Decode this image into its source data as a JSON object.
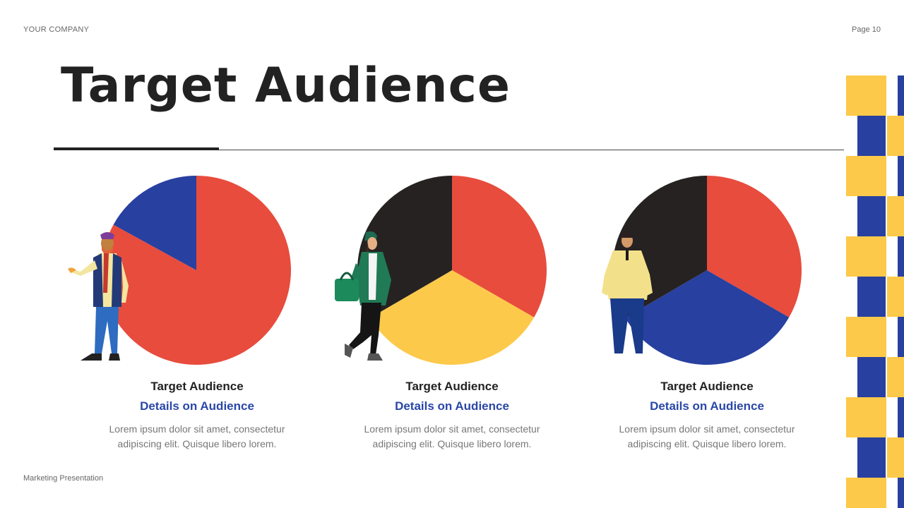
{
  "header": {
    "company": "YOUR COMPANY",
    "page": "Page 10"
  },
  "footer": {
    "text": "Marketing Presentation"
  },
  "title": "Target Audience",
  "colors": {
    "red": "#e84c3d",
    "blue": "#2840a0",
    "dark": "#262222",
    "yellow": "#fdc94a"
  },
  "chart_data": [
    {
      "type": "pie",
      "values": [
        83,
        17
      ],
      "colors": [
        "#e84c3d",
        "#2840a0"
      ]
    },
    {
      "type": "pie",
      "values": [
        33.3,
        33.3,
        33.4
      ],
      "colors": [
        "#e84c3d",
        "#fdc94a",
        "#262222"
      ]
    },
    {
      "type": "pie",
      "values": [
        33.3,
        33.3,
        33.4
      ],
      "colors": [
        "#e84c3d",
        "#2840a0",
        "#262222"
      ]
    }
  ],
  "cards": [
    {
      "title": "Target Audience",
      "subtitle": "Details on Audience",
      "line1": "Lorem ipsum dolor sit amet, consectetur",
      "line2": "adipiscing elit. Quisque libero lorem."
    },
    {
      "title": "Target Audience",
      "subtitle": "Details on Audience",
      "line1": "Lorem ipsum dolor sit amet, consectetur",
      "line2": "adipiscing elit. Quisque libero lorem."
    },
    {
      "title": "Target Audience",
      "subtitle": "Details on Audience",
      "line1": "Lorem ipsum dolor sit amet, consectetur",
      "line2": "adipiscing elit. Quisque libero lorem."
    }
  ]
}
